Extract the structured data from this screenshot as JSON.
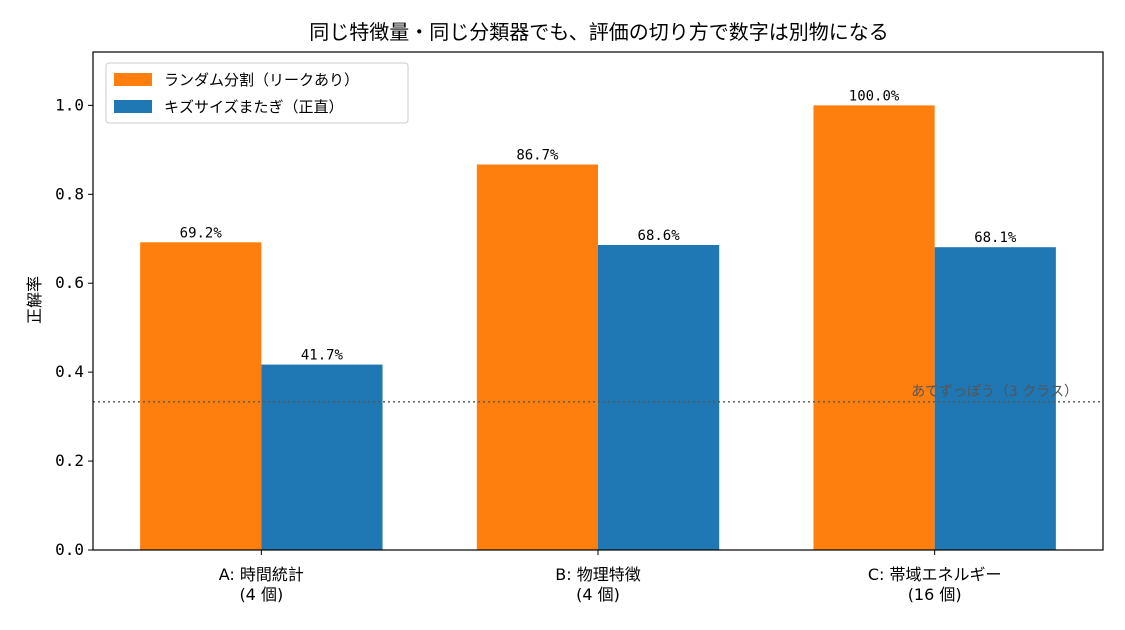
{
  "chart_data": {
    "type": "bar",
    "title": "同じ特徴量・同じ分類器でも、評価の切り方で数字は別物になる",
    "xlabel": "",
    "ylabel": "正解率",
    "ylim": [
      0,
      1.12
    ],
    "yticks": [
      "0.0",
      "0.2",
      "0.4",
      "0.6",
      "0.8",
      "1.0"
    ],
    "ytick_values": [
      0,
      0.2,
      0.4,
      0.6,
      0.8,
      1.0
    ],
    "categories": [
      [
        "A: 時間統計",
        "(4 個)"
      ],
      [
        "B: 物理特徴",
        "(4 個)"
      ],
      [
        "C: 帯域エネルギー",
        "(16 個)"
      ]
    ],
    "series": [
      {
        "name": "ランダム分割（リークあり）",
        "color": "#ff7f0e",
        "values": [
          0.692,
          0.867,
          1.0
        ],
        "labels": [
          "69.2%",
          "86.7%",
          "100.0%"
        ]
      },
      {
        "name": "キズサイズまたぎ（正直）",
        "color": "#1f77b4",
        "values": [
          0.417,
          0.686,
          0.681
        ],
        "labels": [
          "41.7%",
          "68.6%",
          "68.1%"
        ]
      }
    ],
    "reference_line": {
      "value": 0.3333,
      "label": "あてずっぽう（3 クラス）",
      "color": "#555555",
      "style": "dotted"
    },
    "legend_position": "top-left",
    "grid": false
  }
}
